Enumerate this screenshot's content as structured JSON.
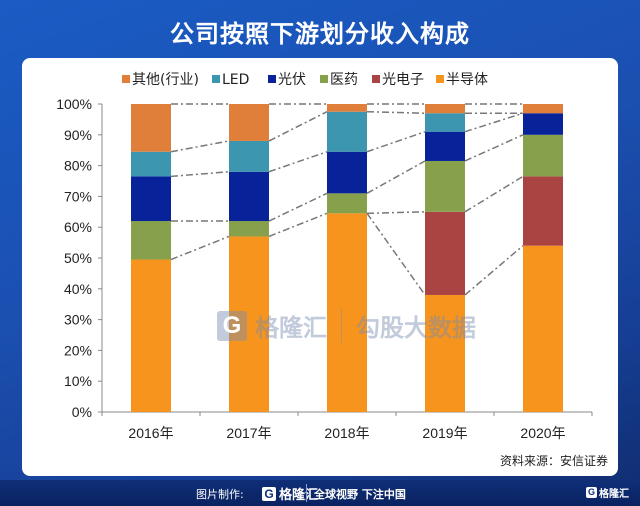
{
  "header": {
    "title": "公司按照下游划分收入构成"
  },
  "source": "资料来源：安信证券",
  "watermark": {
    "brand": "格隆汇",
    "secondary": "勾股大数据"
  },
  "footer": {
    "made_by_label": "图片制作:",
    "brand": "格隆汇",
    "slogan": "全球视野 下注中国",
    "corner_brand": "格隆汇",
    "logo_glyph": "G"
  },
  "chart_data": {
    "type": "bar",
    "stacked": true,
    "percent_stacked": true,
    "title": "公司按照下游划分收入构成",
    "xlabel": "",
    "ylabel": "",
    "categories": [
      "2016年",
      "2017年",
      "2018年",
      "2019年",
      "2020年"
    ],
    "ylim": [
      0,
      100
    ],
    "yticks": [
      0,
      10,
      20,
      30,
      40,
      50,
      60,
      70,
      80,
      90,
      100
    ],
    "ytick_labels": [
      "0%",
      "10%",
      "20%",
      "30%",
      "40%",
      "50%",
      "60%",
      "70%",
      "80%",
      "90%",
      "100%"
    ],
    "legend_position": "top",
    "connector_lines": "dash-dot between segment boundaries of adjacent bars",
    "series": [
      {
        "name": "半导体",
        "color": "#f7941d",
        "values": [
          49.5,
          57.0,
          64.5,
          38.0,
          54.0
        ]
      },
      {
        "name": "光电子",
        "color": "#a94442",
        "values": [
          0,
          0,
          0,
          27.0,
          22.5
        ]
      },
      {
        "name": "医药",
        "color": "#86a04b",
        "values": [
          12.5,
          5.0,
          6.5,
          16.5,
          13.5
        ]
      },
      {
        "name": "光伏",
        "color": "#08239a",
        "values": [
          14.5,
          16.0,
          13.5,
          9.5,
          7.0
        ]
      },
      {
        "name": "LED",
        "color": "#3d96b0",
        "values": [
          8.0,
          10.0,
          13.0,
          6.0,
          0
        ]
      },
      {
        "name": "其他(行业)",
        "color": "#e07f3a",
        "values": [
          15.5,
          12.0,
          2.5,
          3.0,
          3.0
        ]
      }
    ],
    "legend_order": [
      "其他(行业)",
      "LED",
      "光伏",
      "医药",
      "光电子",
      "半导体"
    ]
  }
}
